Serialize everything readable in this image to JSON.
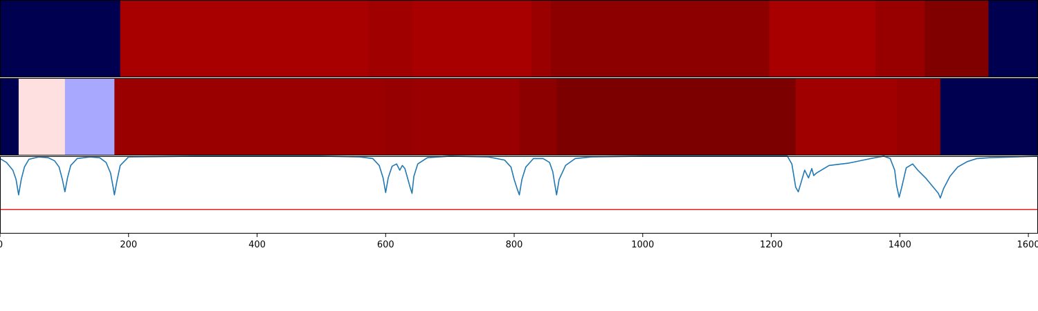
{
  "chart_data": [
    {
      "type": "heatmap",
      "title": "",
      "xlim": [
        0,
        1615
      ],
      "segments": [
        {
          "start": 0,
          "end": 187,
          "color": "#000050"
        },
        {
          "start": 187,
          "end": 573,
          "color": "#a80000"
        },
        {
          "start": 573,
          "end": 642,
          "color": "#a00000"
        },
        {
          "start": 642,
          "end": 827,
          "color": "#a80000"
        },
        {
          "start": 827,
          "end": 857,
          "color": "#9a0000"
        },
        {
          "start": 857,
          "end": 1197,
          "color": "#8c0000"
        },
        {
          "start": 1197,
          "end": 1362,
          "color": "#a80000"
        },
        {
          "start": 1362,
          "end": 1439,
          "color": "#980000"
        },
        {
          "start": 1439,
          "end": 1538,
          "color": "#800000"
        },
        {
          "start": 1538,
          "end": 1615,
          "color": "#000050"
        }
      ]
    },
    {
      "type": "heatmap",
      "title": "",
      "xlim": [
        0,
        1615
      ],
      "segments": [
        {
          "start": 0,
          "end": 29,
          "color": "#000050"
        },
        {
          "start": 29,
          "end": 101,
          "color": "#ffe0e0"
        },
        {
          "start": 101,
          "end": 178,
          "color": "#a8a8ff"
        },
        {
          "start": 178,
          "end": 600,
          "color": "#9a0000"
        },
        {
          "start": 600,
          "end": 643,
          "color": "#960000"
        },
        {
          "start": 643,
          "end": 808,
          "color": "#9a0000"
        },
        {
          "start": 808,
          "end": 866,
          "color": "#8c0000"
        },
        {
          "start": 866,
          "end": 1238,
          "color": "#7c0000"
        },
        {
          "start": 1238,
          "end": 1395,
          "color": "#a00000"
        },
        {
          "start": 1395,
          "end": 1463,
          "color": "#980000"
        },
        {
          "start": 1463,
          "end": 1615,
          "color": "#000050"
        }
      ]
    },
    {
      "type": "line",
      "title": "",
      "xlabel": "",
      "ylabel": "",
      "xlim": [
        0,
        1615
      ],
      "ylim": [
        0,
        1
      ],
      "grid": false,
      "xticks": [
        0,
        200,
        400,
        600,
        800,
        1000,
        1200,
        1400,
        1600
      ],
      "threshold": {
        "value": 0.31,
        "color": "#e02020"
      },
      "series": [
        {
          "color": "#1f77b4",
          "x": [
            0,
            10,
            20,
            25,
            29,
            33,
            38,
            45,
            60,
            75,
            85,
            92,
            97,
            101,
            105,
            110,
            120,
            140,
            155,
            165,
            172,
            176,
            178,
            182,
            187,
            200,
            300,
            400,
            500,
            560,
            580,
            590,
            596,
            600,
            604,
            610,
            617,
            622,
            626,
            630,
            634,
            638,
            641,
            644,
            650,
            665,
            700,
            760,
            785,
            795,
            800,
            805,
            808,
            812,
            818,
            830,
            845,
            855,
            860,
            863,
            866,
            870,
            880,
            895,
            920,
            1000,
            1100,
            1200,
            1225,
            1232,
            1236,
            1238,
            1242,
            1246,
            1252,
            1258,
            1263,
            1266,
            1270,
            1290,
            1320,
            1355,
            1375,
            1385,
            1392,
            1395,
            1399,
            1403,
            1410,
            1420,
            1428,
            1440,
            1452,
            1460,
            1463,
            1468,
            1478,
            1490,
            1505,
            1520,
            1540,
            1580,
            1615
          ],
          "y": [
            0.97,
            0.92,
            0.82,
            0.7,
            0.5,
            0.7,
            0.86,
            0.96,
            0.99,
            0.98,
            0.94,
            0.86,
            0.7,
            0.54,
            0.72,
            0.88,
            0.97,
            0.99,
            0.98,
            0.92,
            0.78,
            0.6,
            0.5,
            0.68,
            0.88,
            0.99,
            1.0,
            1.0,
            1.0,
            0.99,
            0.97,
            0.88,
            0.72,
            0.53,
            0.72,
            0.87,
            0.9,
            0.82,
            0.88,
            0.84,
            0.72,
            0.6,
            0.52,
            0.74,
            0.9,
            0.98,
            1.0,
            0.99,
            0.95,
            0.86,
            0.7,
            0.57,
            0.5,
            0.7,
            0.86,
            0.97,
            0.97,
            0.92,
            0.8,
            0.65,
            0.5,
            0.7,
            0.88,
            0.97,
            0.99,
            1.0,
            1.0,
            1.0,
            1.0,
            0.9,
            0.7,
            0.6,
            0.54,
            0.65,
            0.82,
            0.72,
            0.84,
            0.75,
            0.78,
            0.88,
            0.91,
            0.97,
            1.0,
            0.97,
            0.82,
            0.62,
            0.47,
            0.6,
            0.85,
            0.9,
            0.82,
            0.72,
            0.6,
            0.52,
            0.46,
            0.58,
            0.74,
            0.86,
            0.93,
            0.97,
            0.98,
            0.99,
            1.0
          ]
        }
      ]
    }
  ]
}
